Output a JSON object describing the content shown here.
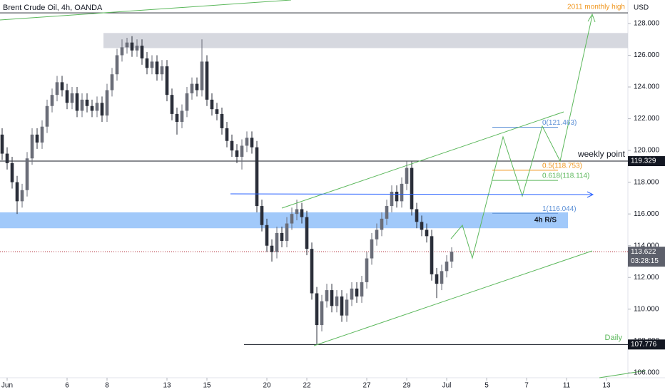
{
  "chart_data": {
    "type": "candlestick",
    "title": "Brent Crude Oil, 4h, OANDA",
    "currency": "USD",
    "x": [
      -0.25,
      0,
      0.25,
      0.5,
      0.75,
      1,
      1.25,
      1.5,
      1.75,
      2,
      2.25,
      2.5,
      2.75,
      3,
      3.25,
      3.5,
      3.75,
      4,
      4.25,
      4.5,
      4.75,
      5,
      5.25,
      5.5,
      5.75,
      6,
      6.25,
      6.5,
      6.75,
      7,
      7.25,
      7.5,
      7.75,
      8,
      8.25,
      8.5,
      8.75,
      9,
      9.25,
      9.5,
      9.75,
      10,
      10.25,
      10.5,
      10.75,
      11,
      11.25,
      11.5,
      11.75,
      12,
      12.25,
      12.5,
      12.75,
      13,
      13.25,
      13.5,
      13.75,
      14,
      14.25,
      14.5,
      14.75,
      15,
      15.25,
      15.5,
      15.75,
      16,
      16.25,
      16.5,
      16.75,
      17,
      17.25,
      17.5,
      17.75,
      18,
      18.25,
      18.5,
      18.75,
      19,
      19.25,
      19.5,
      19.75,
      20,
      20.25,
      20.5,
      20.75,
      21,
      21.25,
      21.5,
      21.75,
      22,
      22.25
    ],
    "open": [
      121.0,
      119.8,
      119.2,
      118.0,
      116.8,
      117.5,
      119.5,
      121.0,
      120.5,
      121.5,
      122.8,
      123.5,
      124.3,
      123.8,
      123.0,
      123.6,
      122.5,
      123.2,
      122.8,
      122.5,
      123.0,
      122.2,
      123.8,
      124.8,
      126.0,
      126.5,
      126.8,
      126.3,
      126.6,
      125.8,
      125.2,
      125.6,
      124.8,
      125.3,
      123.5,
      122.3,
      121.8,
      122.5,
      123.6,
      124.2,
      123.8,
      125.6,
      123.2,
      122.6,
      122.3,
      121.4,
      120.6,
      120.0,
      119.6,
      120.3,
      120.8,
      120.2,
      116.5,
      115.3,
      114.0,
      113.6,
      114.8,
      114.3,
      115.4,
      116.0,
      116.3,
      115.8,
      113.8,
      111.0,
      109.0,
      110.5,
      111.2,
      110.2,
      110.8,
      109.6,
      110.6,
      111.3,
      110.8,
      111.7,
      113.2,
      114.4,
      115.0,
      115.7,
      116.5,
      117.4,
      116.8,
      117.9,
      118.9,
      116.3,
      115.5,
      115.0,
      114.6,
      112.2,
      111.6,
      112.4,
      113.0
    ],
    "high": [
      121.4,
      120.2,
      119.6,
      118.4,
      117.9,
      119.9,
      121.4,
      121.4,
      121.9,
      123.2,
      123.9,
      124.7,
      124.7,
      124.2,
      124.0,
      124.0,
      123.6,
      123.6,
      123.2,
      123.4,
      123.4,
      124.2,
      125.2,
      126.4,
      127.0,
      127.1,
      127.2,
      127.0,
      127.0,
      126.2,
      126.0,
      126.0,
      125.7,
      125.7,
      123.9,
      122.7,
      122.9,
      124.0,
      124.6,
      124.6,
      127.0,
      126.0,
      123.6,
      123.0,
      122.7,
      121.8,
      121.0,
      120.4,
      120.7,
      121.2,
      121.2,
      120.6,
      116.9,
      115.7,
      114.4,
      115.2,
      115.2,
      115.8,
      116.4,
      116.9,
      116.7,
      116.2,
      114.2,
      111.4,
      110.9,
      111.6,
      111.6,
      111.2,
      111.2,
      111.0,
      111.7,
      111.7,
      112.1,
      113.6,
      114.8,
      115.4,
      116.1,
      116.9,
      117.8,
      117.8,
      118.3,
      119.3,
      119.3,
      116.7,
      115.9,
      115.4,
      115.0,
      112.6,
      112.8,
      113.4,
      113.9
    ],
    "low": [
      119.4,
      118.8,
      117.6,
      116.0,
      116.4,
      117.1,
      119.1,
      120.1,
      120.1,
      121.1,
      122.4,
      123.1,
      123.4,
      122.6,
      122.6,
      122.1,
      122.1,
      122.4,
      122.1,
      122.1,
      121.8,
      121.8,
      123.4,
      124.4,
      125.6,
      126.1,
      125.9,
      125.9,
      125.4,
      124.8,
      124.8,
      124.4,
      124.4,
      123.1,
      121.9,
      121.0,
      121.4,
      122.1,
      123.2,
      123.4,
      123.4,
      122.8,
      122.2,
      121.9,
      121.0,
      120.2,
      119.6,
      119.2,
      118.8,
      119.9,
      119.8,
      116.1,
      114.9,
      113.6,
      113.0,
      113.2,
      113.9,
      113.9,
      115.0,
      115.6,
      115.4,
      113.4,
      110.6,
      107.8,
      108.6,
      110.1,
      109.8,
      109.8,
      109.2,
      109.2,
      110.2,
      110.4,
      110.4,
      111.3,
      112.8,
      114.0,
      114.6,
      115.3,
      116.1,
      116.4,
      116.4,
      117.5,
      115.9,
      115.1,
      114.6,
      114.2,
      111.8,
      110.7,
      111.2,
      112.0,
      112.6
    ],
    "close": [
      119.8,
      119.2,
      118.0,
      116.8,
      117.5,
      119.5,
      121.0,
      120.5,
      121.5,
      122.8,
      123.5,
      124.3,
      123.8,
      123.0,
      123.6,
      122.5,
      123.2,
      122.8,
      122.5,
      123.0,
      122.2,
      123.8,
      124.8,
      126.0,
      126.5,
      126.8,
      126.3,
      126.6,
      125.8,
      125.2,
      125.6,
      124.8,
      125.3,
      123.5,
      122.3,
      121.8,
      122.5,
      123.6,
      124.2,
      123.8,
      125.6,
      123.2,
      122.6,
      122.3,
      121.4,
      120.6,
      120.0,
      119.6,
      120.3,
      120.8,
      120.2,
      116.5,
      115.3,
      114.0,
      113.6,
      114.8,
      114.3,
      115.4,
      116.0,
      116.3,
      115.8,
      113.8,
      111.0,
      109.0,
      110.5,
      111.2,
      110.2,
      110.8,
      109.6,
      110.6,
      111.3,
      110.8,
      111.7,
      113.2,
      114.4,
      115.0,
      115.7,
      116.5,
      117.4,
      116.8,
      117.9,
      118.9,
      116.3,
      115.5,
      115.0,
      114.6,
      112.2,
      111.6,
      112.4,
      113.0,
      113.622
    ],
    "up_color": "#6a6d78",
    "down_color": "#2a2e39",
    "xlim": [
      -0.357,
      31.07
    ],
    "xticks": [
      {
        "value": 0,
        "label": "Jun"
      },
      {
        "value": 3,
        "label": "6"
      },
      {
        "value": 5,
        "label": "8"
      },
      {
        "value": 8,
        "label": "13"
      },
      {
        "value": 10,
        "label": "15"
      },
      {
        "value": 13,
        "label": "20"
      },
      {
        "value": 15,
        "label": "22"
      },
      {
        "value": 18,
        "label": "27"
      },
      {
        "value": 20,
        "label": "29"
      },
      {
        "value": 22,
        "label": "Jul"
      },
      {
        "value": 24,
        "label": "5"
      },
      {
        "value": 26,
        "label": "7"
      },
      {
        "value": 28,
        "label": "11"
      },
      {
        "value": 30,
        "label": "13"
      }
    ],
    "ylim": [
      105.68,
      129.48
    ],
    "yticks": [
      {
        "value": 106,
        "label": "106.000"
      },
      {
        "value": 108,
        "label": "108.000"
      },
      {
        "value": 110,
        "label": "110.000"
      },
      {
        "value": 112,
        "label": "112.000"
      },
      {
        "value": 114,
        "label": "114.000"
      },
      {
        "value": 116,
        "label": "116.000"
      },
      {
        "value": 118,
        "label": "118.000"
      },
      {
        "value": 120,
        "label": "120.000"
      },
      {
        "value": 122,
        "label": "122.000"
      },
      {
        "value": 124,
        "label": "124.000"
      },
      {
        "value": 126,
        "label": "126.000"
      },
      {
        "value": 128,
        "label": "128.000"
      }
    ],
    "last_price": 113.622,
    "countdown": "03:28:15",
    "levels": [
      {
        "name": "weekly point",
        "value": 119.329
      },
      {
        "name": "Daily",
        "value": 107.776
      }
    ],
    "annotation": {
      "text": "2011 monthly high",
      "value": 128.67
    },
    "zones": [
      {
        "name": "4h R/S",
        "low": 115.1,
        "high": 116.1,
        "color": "#90bff9"
      },
      {
        "low": 126.45,
        "high": 127.4,
        "color": "#d1d4dc"
      }
    ],
    "fib": [
      {
        "label": "0(121.463)",
        "value": 121.463,
        "color": "#5b8fd6"
      },
      {
        "label": "0.5(118.753)",
        "value": 118.753,
        "color": "#f0961e"
      },
      {
        "label": "0.618(118.114)",
        "value": 118.114,
        "color": "#5cb85c"
      },
      {
        "label": "1(116.044)",
        "value": 116.044,
        "color": "#5b8fd6"
      }
    ]
  }
}
